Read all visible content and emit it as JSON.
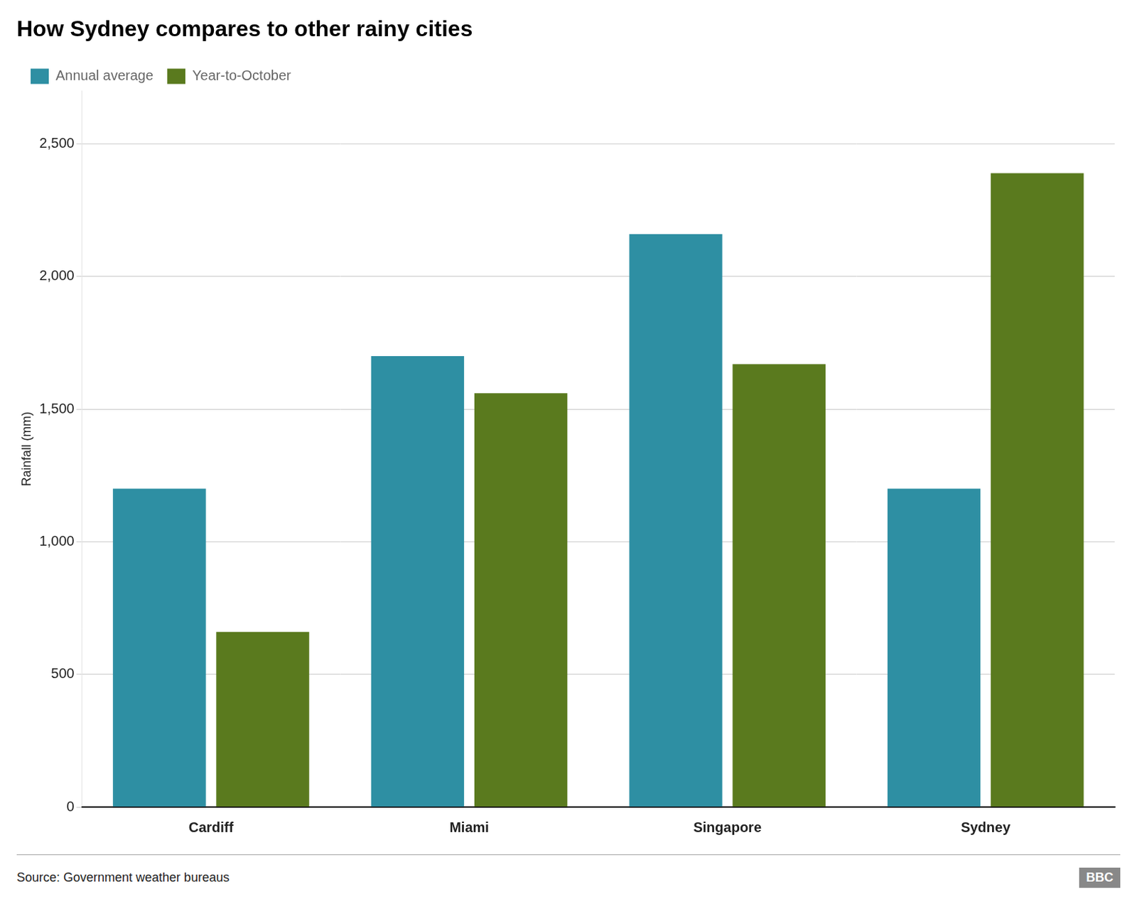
{
  "chart_data": {
    "type": "bar",
    "title": "How Sydney compares to other rainy cities",
    "y_label": "Rainfall (mm)",
    "source": "Source: Government weather bureaus",
    "annotations": [
      "BBC"
    ],
    "categories": [
      "Cardiff",
      "Miami",
      "Singapore",
      "Sydney"
    ],
    "series": [
      {
        "name": "Annual average",
        "color": "#2e8fa3",
        "values": [
          1200,
          1700,
          2160,
          1200
        ]
      },
      {
        "name": "Year-to-October",
        "color": "#5a7a1e",
        "values": [
          660,
          1560,
          1670,
          2390
        ]
      }
    ],
    "ylim": [
      0,
      2700
    ],
    "yticks": [
      0,
      500,
      {
        "value": 1000,
        "label": "1,000"
      },
      {
        "value": 1500,
        "label": "1,500"
      },
      {
        "value": 2000,
        "label": "2,000"
      },
      {
        "value": 2500,
        "label": "2,500"
      }
    ],
    "grid": true,
    "legend": "upper left"
  }
}
